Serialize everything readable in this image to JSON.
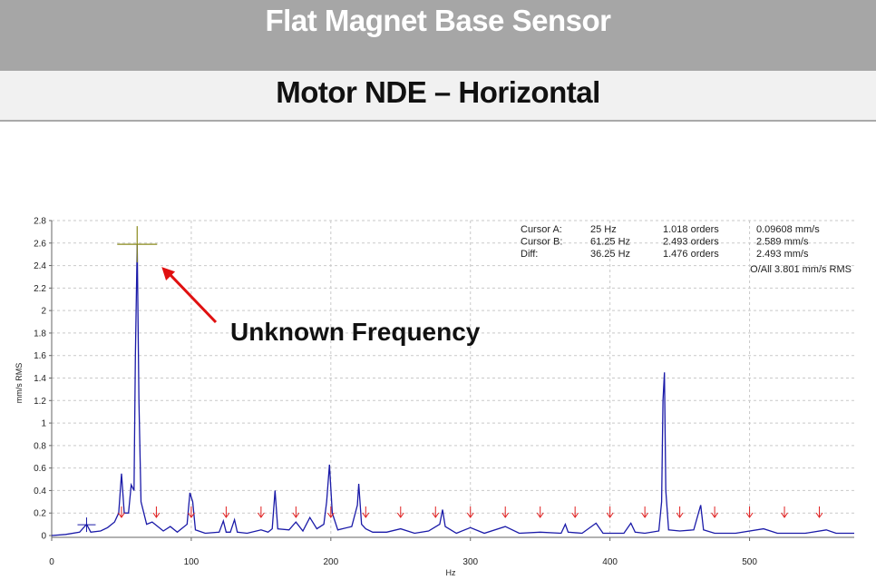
{
  "header": {
    "title": "Flat Magnet Base Sensor",
    "subtitle": "Motor NDE – Horizontal"
  },
  "colors": {
    "trace": "#1a1aa8",
    "marker": "#e02020",
    "cursor": "#8a8a1a",
    "grid": "#c9c9c9"
  },
  "chart_data": {
    "type": "line",
    "title": "",
    "xlabel": "Hz",
    "ylabel": "mm/s RMS",
    "xlim": [
      0,
      575
    ],
    "ylim": [
      0,
      2.8
    ],
    "x_ticks": [
      0,
      100,
      200,
      300,
      400,
      500
    ],
    "y_ticks": [
      0,
      0.2,
      0.4,
      0.6,
      0.8,
      1,
      1.2,
      1.4,
      1.6,
      1.8,
      2,
      2.2,
      2.4,
      2.6,
      2.8
    ],
    "grid": true,
    "series": [
      {
        "points": [
          [
            0,
            0
          ],
          [
            10,
            0.01
          ],
          [
            20,
            0.03
          ],
          [
            25,
            0.1
          ],
          [
            28,
            0.03
          ],
          [
            35,
            0.04
          ],
          [
            40,
            0.07
          ],
          [
            45,
            0.12
          ],
          [
            48,
            0.2
          ],
          [
            50,
            0.55
          ],
          [
            52,
            0.2
          ],
          [
            55,
            0.2
          ],
          [
            57,
            0.45
          ],
          [
            59,
            0.4
          ],
          [
            60,
            1.6
          ],
          [
            61.25,
            2.589
          ],
          [
            62.5,
            1.2
          ],
          [
            64,
            0.3
          ],
          [
            66,
            0.2
          ],
          [
            68,
            0.1
          ],
          [
            72,
            0.12
          ],
          [
            80,
            0.04
          ],
          [
            85,
            0.08
          ],
          [
            90,
            0.03
          ],
          [
            97,
            0.1
          ],
          [
            99,
            0.38
          ],
          [
            101,
            0.3
          ],
          [
            103,
            0.05
          ],
          [
            110,
            0.02
          ],
          [
            120,
            0.03
          ],
          [
            123,
            0.13
          ],
          [
            125,
            0.03
          ],
          [
            128,
            0.03
          ],
          [
            131,
            0.14
          ],
          [
            133,
            0.03
          ],
          [
            140,
            0.02
          ],
          [
            150,
            0.05
          ],
          [
            155,
            0.03
          ],
          [
            158,
            0.06
          ],
          [
            160,
            0.4
          ],
          [
            162,
            0.06
          ],
          [
            170,
            0.05
          ],
          [
            175,
            0.12
          ],
          [
            180,
            0.04
          ],
          [
            185,
            0.16
          ],
          [
            190,
            0.06
          ],
          [
            195,
            0.1
          ],
          [
            197,
            0.3
          ],
          [
            199,
            0.63
          ],
          [
            201,
            0.2
          ],
          [
            205,
            0.05
          ],
          [
            215,
            0.08
          ],
          [
            219,
            0.27
          ],
          [
            220,
            0.46
          ],
          [
            222,
            0.1
          ],
          [
            225,
            0.06
          ],
          [
            230,
            0.03
          ],
          [
            240,
            0.03
          ],
          [
            250,
            0.06
          ],
          [
            260,
            0.02
          ],
          [
            270,
            0.04
          ],
          [
            278,
            0.1
          ],
          [
            280,
            0.23
          ],
          [
            282,
            0.08
          ],
          [
            290,
            0.02
          ],
          [
            300,
            0.07
          ],
          [
            310,
            0.02
          ],
          [
            325,
            0.08
          ],
          [
            335,
            0.02
          ],
          [
            350,
            0.03
          ],
          [
            365,
            0.02
          ],
          [
            368,
            0.1
          ],
          [
            370,
            0.03
          ],
          [
            380,
            0.02
          ],
          [
            390,
            0.11
          ],
          [
            395,
            0.02
          ],
          [
            410,
            0.02
          ],
          [
            415,
            0.11
          ],
          [
            418,
            0.03
          ],
          [
            425,
            0.02
          ],
          [
            435,
            0.04
          ],
          [
            437,
            0.3
          ],
          [
            438,
            1.2
          ],
          [
            439,
            1.45
          ],
          [
            440,
            0.4
          ],
          [
            442,
            0.05
          ],
          [
            450,
            0.04
          ],
          [
            460,
            0.05
          ],
          [
            465,
            0.27
          ],
          [
            467,
            0.05
          ],
          [
            475,
            0.02
          ],
          [
            490,
            0.02
          ],
          [
            510,
            0.06
          ],
          [
            520,
            0.02
          ],
          [
            540,
            0.02
          ],
          [
            555,
            0.05
          ],
          [
            562,
            0.02
          ],
          [
            575,
            0.02
          ]
        ]
      }
    ],
    "markers_x": [
      50,
      75,
      100,
      125,
      150,
      175,
      200,
      225,
      250,
      275,
      300,
      325,
      350,
      375,
      400,
      425,
      450,
      475,
      500,
      525,
      550
    ],
    "cursor_a": {
      "x": 25,
      "y": 0.09608
    },
    "cursor_b": {
      "x": 61.25,
      "y": 2.589
    },
    "cursor_readout": {
      "rows": [
        {
          "label": "Cursor A:",
          "freq": "25 Hz",
          "orders": "1.018 orders",
          "amp": "0.09608 mm/s"
        },
        {
          "label": "Cursor B:",
          "freq": "61.25 Hz",
          "orders": "2.493 orders",
          "amp": "2.589 mm/s"
        },
        {
          "label": "Diff:",
          "freq": "36.25 Hz",
          "orders": "1.476 orders",
          "amp": "2.493 mm/s"
        }
      ],
      "overall": "O/All 3.801 mm/s RMS"
    },
    "annotation": {
      "text": "Unknown Frequency",
      "points_to_x": 61.25,
      "points_to_y": 2.589
    }
  }
}
